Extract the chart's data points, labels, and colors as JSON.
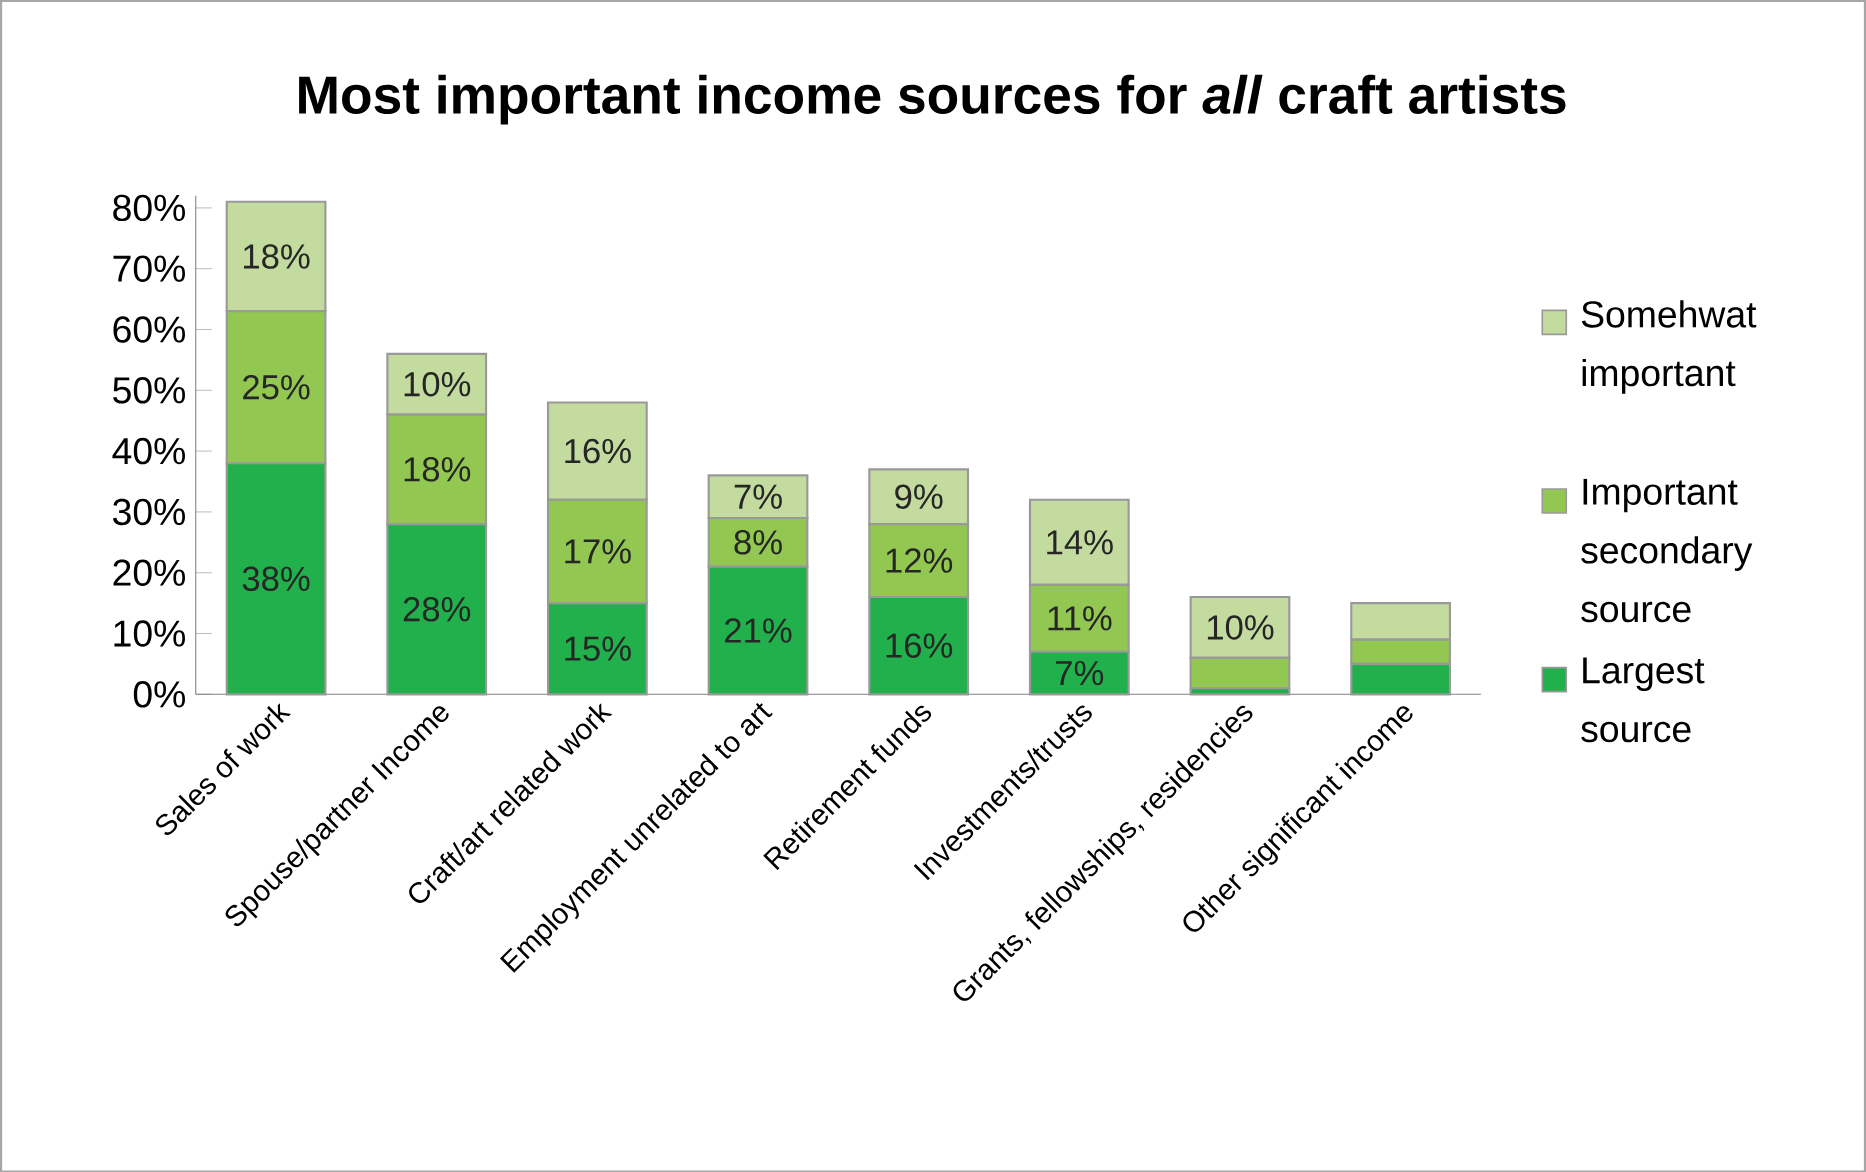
{
  "chart_data": {
    "type": "bar",
    "stacked": true,
    "title": "Most important income sources for *all* craft artists",
    "categories": [
      "Sales of work",
      "Spouse/partner Income",
      "Craft/art related work",
      "Employment unrelated to art",
      "Retirement funds",
      "Investments/trusts",
      "Grants, fellowships, residencies",
      "Other significant income"
    ],
    "series": [
      {
        "name": "Largest source",
        "color": "#21b04b",
        "values": [
          38,
          28,
          15,
          21,
          16,
          7,
          1,
          5
        ],
        "value_labels": [
          "38%",
          "28%",
          "15%",
          "21%",
          "16%",
          "7%",
          null,
          null
        ]
      },
      {
        "name": "Important secondary source",
        "color": "#92c851",
        "values": [
          25,
          18,
          17,
          8,
          12,
          11,
          5,
          4
        ],
        "value_labels": [
          "25%",
          "18%",
          "17%",
          "8%",
          "12%",
          "11%",
          null,
          null
        ]
      },
      {
        "name": "Somehwat important",
        "color": "#c4dba0",
        "values": [
          18,
          10,
          16,
          7,
          9,
          14,
          10,
          6
        ],
        "value_labels": [
          "18%",
          "10%",
          "16%",
          "7%",
          "9%",
          "14%",
          "10%",
          null
        ]
      }
    ],
    "ylim": [
      0,
      82
    ],
    "yticks": [
      {
        "value": 0,
        "label": "0%"
      },
      {
        "value": 10,
        "label": "10%"
      },
      {
        "value": 20,
        "label": "20%"
      },
      {
        "value": 30,
        "label": "30%"
      },
      {
        "value": 40,
        "label": "40%"
      },
      {
        "value": 50,
        "label": "50%"
      },
      {
        "value": 60,
        "label": "60%"
      },
      {
        "value": 70,
        "label": "70%"
      },
      {
        "value": 80,
        "label": "80%"
      }
    ],
    "grid": false,
    "legend": "right"
  }
}
